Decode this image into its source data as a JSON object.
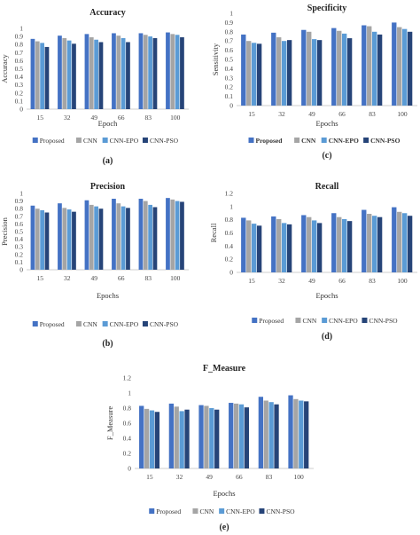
{
  "series_colors": [
    "#4472c4",
    "#a5a5a5",
    "#5b9bd5",
    "#264478"
  ],
  "chart_data": [
    {
      "type": "bar",
      "panel_label": "(a)",
      "title": "Accuracy",
      "xlabel": "Epoch",
      "ylabel": "Accuracy",
      "ylim": [
        0,
        1
      ],
      "yticks": [
        "0",
        "0.1",
        "0.2",
        "0.3",
        "0.4",
        "0.5",
        "0.6",
        "0.7",
        "0.8",
        "0.9",
        "1"
      ],
      "grid": false,
      "legend": "bottom",
      "categories": [
        "15",
        "32",
        "49",
        "66",
        "83",
        "100"
      ],
      "series": [
        {
          "name": "Proposed",
          "values": [
            0.87,
            0.91,
            0.93,
            0.94,
            0.94,
            0.95
          ]
        },
        {
          "name": "CNN",
          "values": [
            0.84,
            0.88,
            0.89,
            0.91,
            0.92,
            0.93
          ]
        },
        {
          "name": "CNN-EPO",
          "values": [
            0.82,
            0.85,
            0.86,
            0.88,
            0.9,
            0.92
          ]
        },
        {
          "name": "CNN-PSO",
          "values": [
            0.77,
            0.81,
            0.83,
            0.83,
            0.88,
            0.89
          ]
        }
      ]
    },
    {
      "type": "bar",
      "panel_label": "(c)",
      "title": "Specificity",
      "xlabel": "Epochs",
      "ylabel": "Sensitivity",
      "ylim": [
        0,
        1
      ],
      "yticks": [
        "0",
        "0.1",
        "0.2",
        "0.3",
        "0.4",
        "0.5",
        "0.6",
        "0.7",
        "0.8",
        "0.9",
        "1"
      ],
      "grid": false,
      "legend": "bottom",
      "legend_bold": true,
      "categories": [
        "15",
        "32",
        "49",
        "66",
        "83",
        "100"
      ],
      "series": [
        {
          "name": "Proposed",
          "values": [
            0.77,
            0.79,
            0.82,
            0.84,
            0.87,
            0.9
          ]
        },
        {
          "name": "CNN",
          "values": [
            0.7,
            0.74,
            0.8,
            0.81,
            0.86,
            0.85
          ]
        },
        {
          "name": "CNN-EPO",
          "values": [
            0.68,
            0.7,
            0.72,
            0.78,
            0.8,
            0.83
          ]
        },
        {
          "name": "CNN-PSO",
          "values": [
            0.67,
            0.71,
            0.71,
            0.73,
            0.77,
            0.8
          ]
        }
      ]
    },
    {
      "type": "bar",
      "panel_label": "(b)",
      "title": "Precision",
      "xlabel": "Epochs",
      "ylabel": "Precision",
      "ylim": [
        0,
        1
      ],
      "yticks": [
        "0",
        "0.1",
        "0.2",
        "0.3",
        "0.4",
        "0.5",
        "0.6",
        "0.7",
        "0.8",
        "0.9",
        "1"
      ],
      "grid": false,
      "legend": "bottom",
      "categories": [
        "15",
        "32",
        "49",
        "66",
        "83",
        "100"
      ],
      "series": [
        {
          "name": "Proposed",
          "values": [
            0.84,
            0.87,
            0.91,
            0.93,
            0.93,
            0.94
          ]
        },
        {
          "name": "CNN",
          "values": [
            0.8,
            0.81,
            0.85,
            0.87,
            0.9,
            0.92
          ]
        },
        {
          "name": "CNN-EPO",
          "values": [
            0.78,
            0.79,
            0.83,
            0.83,
            0.85,
            0.9
          ]
        },
        {
          "name": "CNN-PSO",
          "values": [
            0.75,
            0.76,
            0.8,
            0.81,
            0.82,
            0.89
          ]
        }
      ]
    },
    {
      "type": "bar",
      "panel_label": "(d)",
      "title": "Recall",
      "xlabel": "Epochs",
      "ylabel": "Recall",
      "ylim": [
        0,
        1.2
      ],
      "yticks": [
        "0",
        "0.2",
        "0.4",
        "0.6",
        "0.8",
        "1",
        "1.2"
      ],
      "grid": false,
      "legend": "bottom",
      "categories": [
        "15",
        "32",
        "49",
        "66",
        "83",
        "100"
      ],
      "series": [
        {
          "name": "Proposed",
          "values": [
            0.83,
            0.85,
            0.87,
            0.9,
            0.95,
            0.99
          ]
        },
        {
          "name": "CNN",
          "values": [
            0.79,
            0.81,
            0.84,
            0.84,
            0.89,
            0.92
          ]
        },
        {
          "name": "CNN-EPO",
          "values": [
            0.74,
            0.75,
            0.79,
            0.81,
            0.86,
            0.9
          ]
        },
        {
          "name": "CNN-PSO",
          "values": [
            0.71,
            0.73,
            0.75,
            0.78,
            0.84,
            0.86
          ]
        }
      ]
    },
    {
      "type": "bar",
      "panel_label": "(e)",
      "title": "F_Measure",
      "xlabel": "Epochs",
      "ylabel": "F_Measure",
      "ylim": [
        0,
        1.2
      ],
      "yticks": [
        "0",
        "0.2",
        "0.4",
        "0.6",
        "0.8",
        "1",
        "1.2"
      ],
      "grid": false,
      "legend": "bottom",
      "categories": [
        "15",
        "32",
        "49",
        "66",
        "83",
        "100"
      ],
      "series": [
        {
          "name": "Proposed",
          "values": [
            0.83,
            0.86,
            0.84,
            0.87,
            0.95,
            0.97
          ]
        },
        {
          "name": "CNN",
          "values": [
            0.79,
            0.82,
            0.83,
            0.86,
            0.9,
            0.92
          ]
        },
        {
          "name": "CNN-EPO",
          "values": [
            0.77,
            0.76,
            0.8,
            0.85,
            0.88,
            0.9
          ]
        },
        {
          "name": "CNN-PSO",
          "values": [
            0.75,
            0.78,
            0.78,
            0.81,
            0.85,
            0.89
          ]
        }
      ]
    }
  ]
}
